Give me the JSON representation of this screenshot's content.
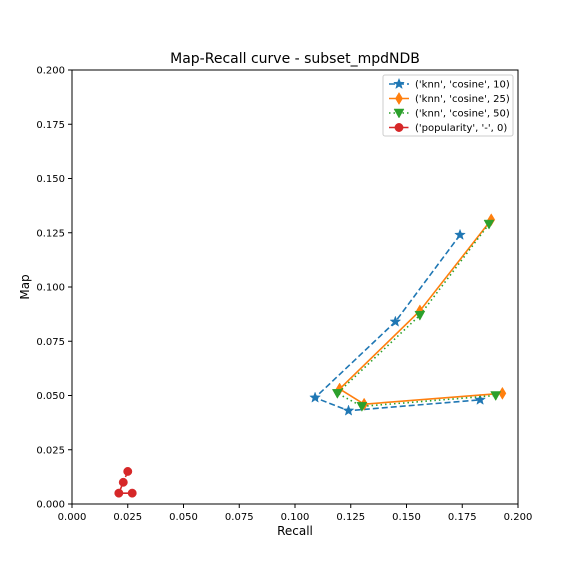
{
  "chart_data": {
    "type": "line",
    "title": "Map-Recall curve - subset_mpdNDB",
    "xlabel": "Recall",
    "ylabel": "Map",
    "xlim": [
      0.0,
      0.2
    ],
    "ylim": [
      0.0,
      0.2
    ],
    "xticks": [
      "0.000",
      "0.025",
      "0.050",
      "0.075",
      "0.100",
      "0.125",
      "0.150",
      "0.175",
      "0.200"
    ],
    "yticks": [
      "0.000",
      "0.025",
      "0.050",
      "0.075",
      "0.100",
      "0.125",
      "0.150",
      "0.175",
      "0.200"
    ],
    "grid": false,
    "legend_position": "top-right",
    "series": [
      {
        "name": "('knn', 'cosine', 10)",
        "color": "#1f77b4",
        "linestyle": "dashed",
        "marker": "star",
        "points": [
          [
            0.174,
            0.124
          ],
          [
            0.145,
            0.084
          ],
          [
            0.109,
            0.049
          ],
          [
            0.124,
            0.043
          ],
          [
            0.183,
            0.048
          ]
        ]
      },
      {
        "name": "('knn', 'cosine', 25)",
        "color": "#ff7f0e",
        "linestyle": "solid",
        "marker": "thin-diamond",
        "points": [
          [
            0.188,
            0.131
          ],
          [
            0.156,
            0.089
          ],
          [
            0.12,
            0.053
          ],
          [
            0.131,
            0.046
          ],
          [
            0.193,
            0.051
          ]
        ]
      },
      {
        "name": "('knn', 'cosine', 50)",
        "color": "#2ca02c",
        "linestyle": "dotted",
        "marker": "triangle-down",
        "points": [
          [
            0.187,
            0.129
          ],
          [
            0.156,
            0.087
          ],
          [
            0.119,
            0.051
          ],
          [
            0.13,
            0.045
          ],
          [
            0.19,
            0.05
          ]
        ]
      },
      {
        "name": "('popularity', '-', 0)",
        "color": "#d62728",
        "linestyle": "dashdot",
        "marker": "circle",
        "points": [
          [
            0.025,
            0.015
          ],
          [
            0.023,
            0.01
          ],
          [
            0.021,
            0.005
          ],
          [
            0.027,
            0.005
          ]
        ]
      }
    ]
  }
}
